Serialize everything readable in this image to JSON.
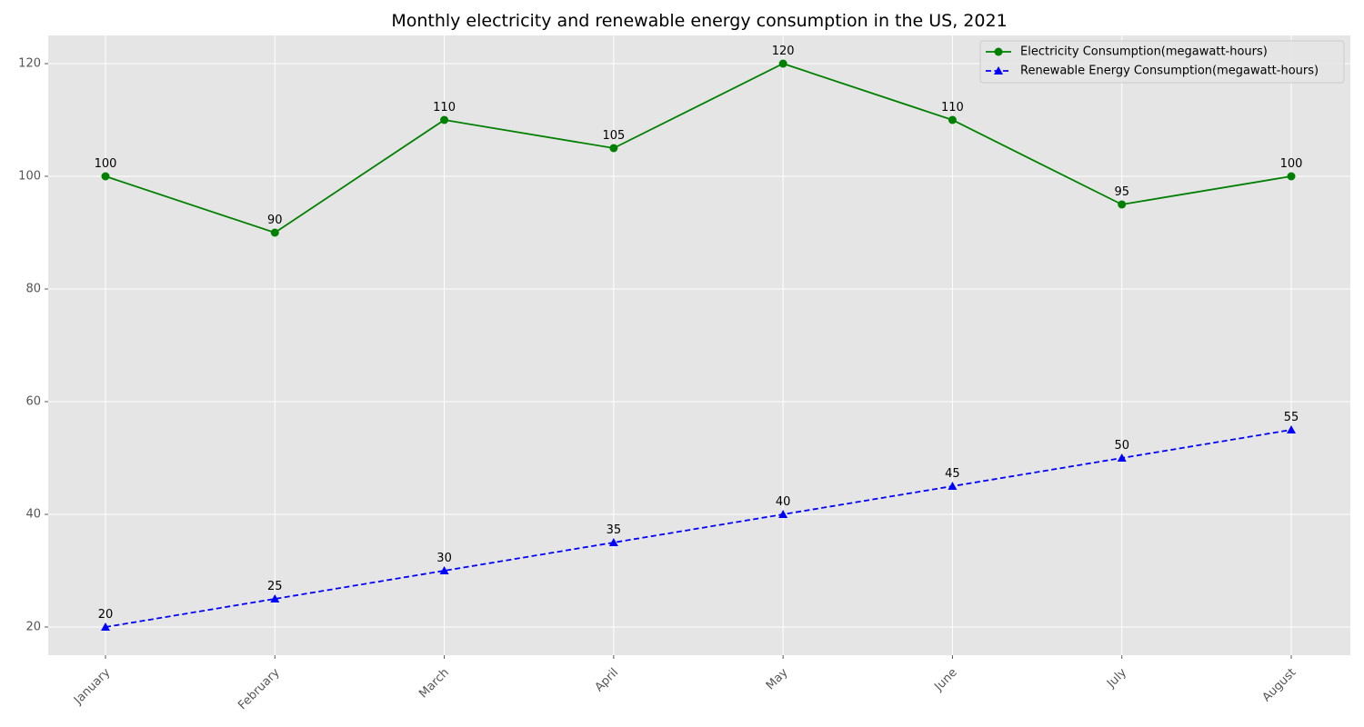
{
  "chart_data": {
    "type": "line",
    "title": "Monthly electricity and renewable energy consumption in the US, 2021",
    "xlabel": "",
    "ylabel": "",
    "categories": [
      "January",
      "February",
      "March",
      "April",
      "May",
      "June",
      "July",
      "August"
    ],
    "ylim": [
      15,
      125
    ],
    "yticks": [
      20,
      40,
      60,
      80,
      100,
      120
    ],
    "grid": true,
    "legend_position": "top-right",
    "series": [
      {
        "name": "Electricity Consumption(megawatt-hours)",
        "values": [
          100,
          90,
          110,
          105,
          120,
          110,
          95,
          100
        ],
        "color": "#008000",
        "marker": "circle",
        "line_style": "solid"
      },
      {
        "name": "Renewable Energy Consumption(megawatt-hours)",
        "values": [
          20,
          25,
          30,
          35,
          40,
          45,
          50,
          55
        ],
        "color": "#0000ff",
        "marker": "triangle",
        "line_style": "dashed"
      }
    ]
  },
  "colors": {
    "plot_background": "#e5e5e5",
    "grid": "#ffffff",
    "tick_text": "#555555"
  }
}
